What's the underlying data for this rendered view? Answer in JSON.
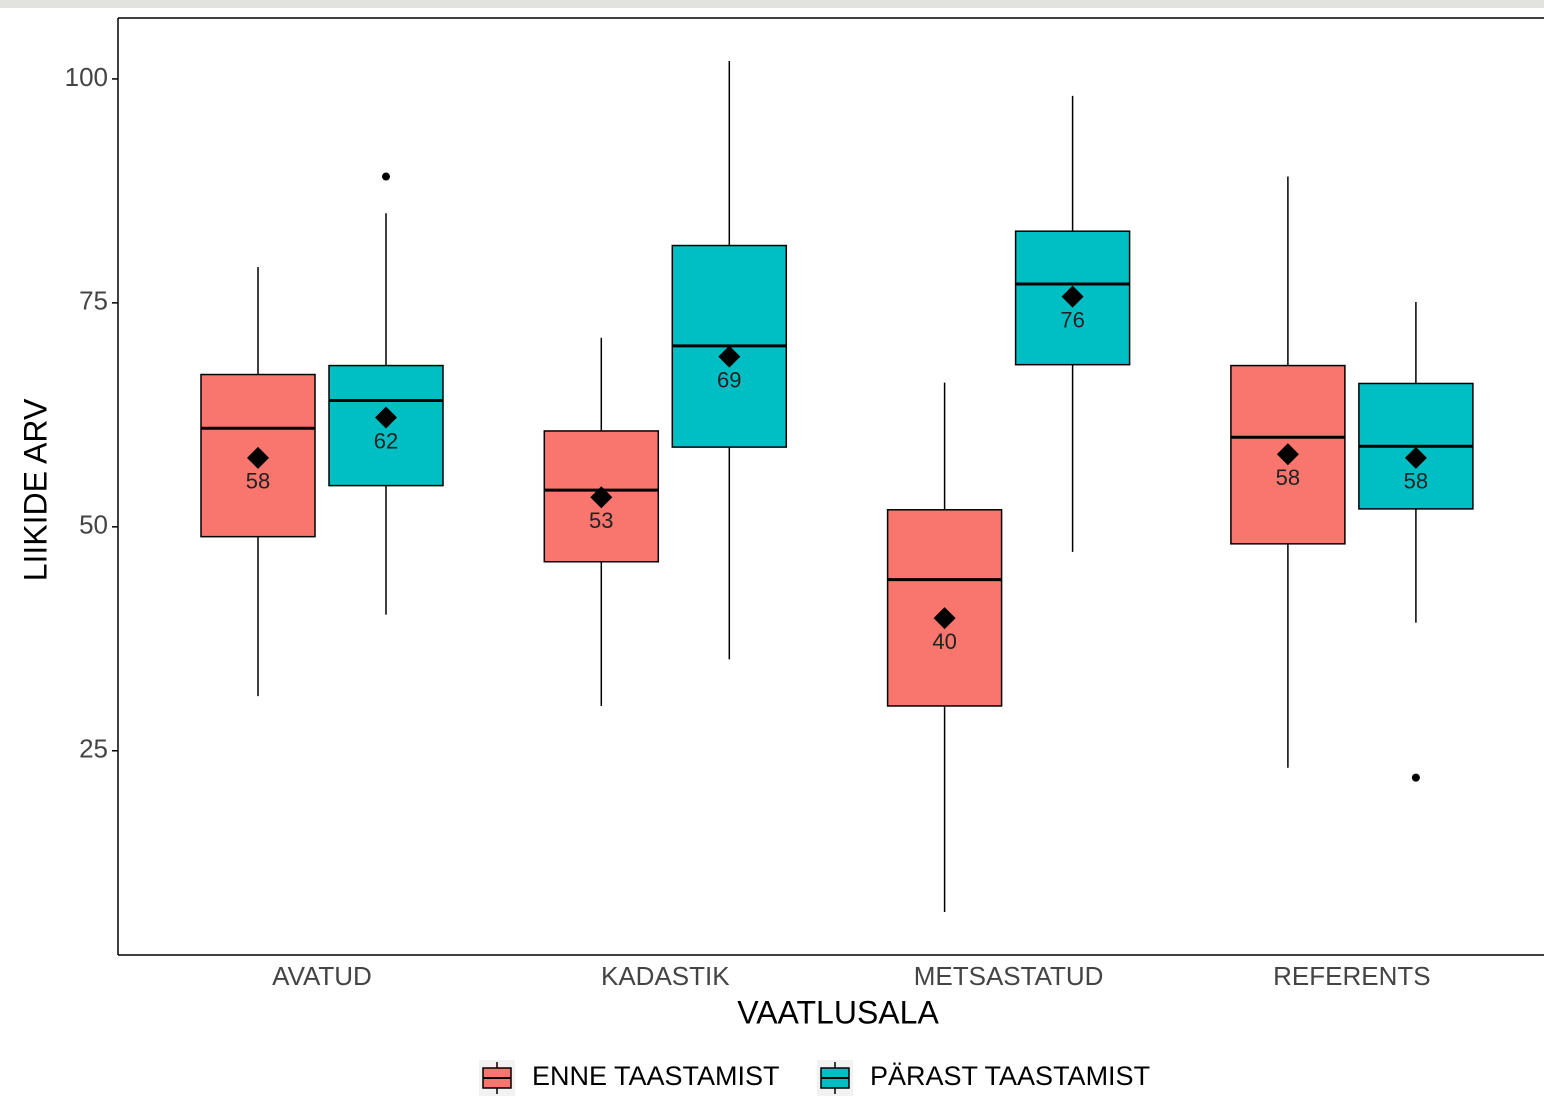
{
  "chart_data": {
    "type": "box",
    "categories": [
      "AVATUD",
      "KADASTIK",
      "METSASTATUD",
      "REFERENTS"
    ],
    "x_label": "VAATLUSALA",
    "y_label": "LIIKIDE ARV",
    "ylim": [
      2.2,
      106.8
    ],
    "yticks": [
      25,
      50,
      75,
      100
    ],
    "grid": false,
    "legend": "bottom",
    "series": [
      {
        "name": "ENNE TAASTAMIST",
        "color": "#f8766d",
        "whisker_low": [
          31.1,
          30.0,
          7.0,
          23.1
        ],
        "q1": [
          48.9,
          46.1,
          30.0,
          48.1
        ],
        "median": [
          61.0,
          54.1,
          44.1,
          60.0
        ],
        "q3": [
          67.0,
          60.7,
          51.9,
          68.0
        ],
        "whisker_high": [
          79.0,
          71.1,
          66.1,
          89.1
        ],
        "mean": [
          57.7,
          53.3,
          39.8,
          58.1
        ],
        "mean_labels": [
          "58",
          "53",
          "40",
          "58"
        ],
        "outliers": [
          [],
          [],
          [],
          []
        ]
      },
      {
        "name": "PÄRAST TAASTAMIST",
        "color": "#00bfc4",
        "whisker_low": [
          40.2,
          35.2,
          47.2,
          39.3
        ],
        "q1": [
          54.6,
          58.9,
          68.1,
          52.0
        ],
        "median": [
          64.1,
          70.2,
          77.1,
          59.0
        ],
        "q3": [
          68.0,
          81.4,
          83.0,
          66.0
        ],
        "whisker_high": [
          85.0,
          102.0,
          98.1,
          75.1
        ],
        "mean": [
          62.2,
          69.0,
          75.7,
          57.7
        ],
        "mean_labels": [
          "62",
          "69",
          "76",
          "58"
        ],
        "outliers": [
          [
            89.1
          ],
          [],
          [],
          [
            22.0
          ]
        ]
      }
    ]
  }
}
